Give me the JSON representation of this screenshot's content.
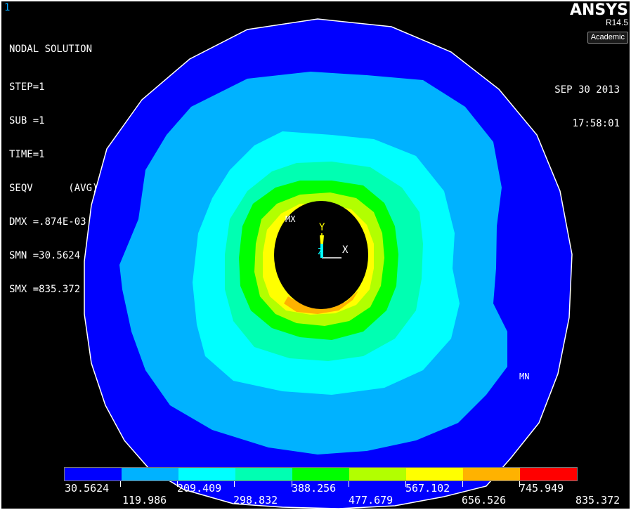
{
  "window_number": "1",
  "info": {
    "title": "NODAL SOLUTION",
    "lines": [
      "STEP=1",
      "SUB =1",
      "TIME=1",
      "SEQV      (AVG)",
      "DMX =.874E-03",
      "SMN =30.5624",
      "SMX =835.372"
    ]
  },
  "logo": {
    "brand": "ANSYS",
    "revision": "R14.5",
    "edition": "Academic"
  },
  "datetime": {
    "date": "SEP 30 2013",
    "time": "17:58:01"
  },
  "markers": {
    "max": "MX",
    "min": "MN"
  },
  "axes": {
    "x": "X",
    "y": "Y",
    "z": "Z"
  },
  "legend": {
    "colors": [
      "#0000ff",
      "#00b2ff",
      "#00ffff",
      "#00ffb2",
      "#00ff00",
      "#b2ff00",
      "#ffff00",
      "#ffb200",
      "#ff0000"
    ],
    "top_labels": [
      "30.5624",
      "209.409",
      "388.256",
      "567.102",
      "745.949"
    ],
    "bottom_labels": [
      "119.986",
      "298.832",
      "477.679",
      "656.526",
      "835.372"
    ]
  },
  "colors": {
    "background": "#000000",
    "band_blue": "#0000ff",
    "band_lightblue": "#00b2ff",
    "band_cyan": "#00ffff",
    "band_aqua": "#00ffb2",
    "band_green": "#00ff00",
    "band_lime": "#b2ff00",
    "band_yellow": "#ffff00",
    "band_orange": "#ffb200",
    "hole": "#000000"
  }
}
